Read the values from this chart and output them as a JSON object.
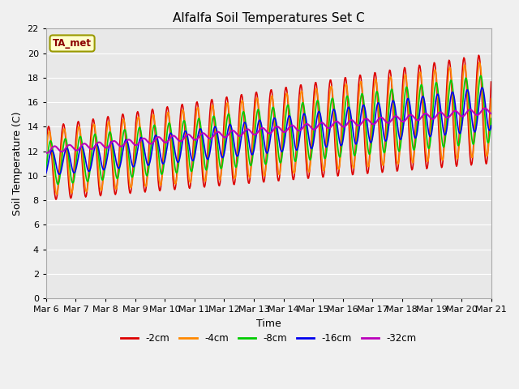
{
  "title": "Alfalfa Soil Temperatures Set C",
  "xlabel": "Time",
  "ylabel": "Soil Temperature (C)",
  "ylim": [
    0,
    22
  ],
  "yticks": [
    0,
    2,
    4,
    6,
    8,
    10,
    12,
    14,
    16,
    18,
    20,
    22
  ],
  "x_labels": [
    "Mar 6",
    "Mar 7",
    "Mar 8",
    "Mar 9",
    "Mar 10",
    "Mar 11",
    "Mar 12",
    "Mar 13",
    "Mar 14",
    "Mar 15",
    "Mar 16",
    "Mar 17",
    "Mar 18",
    "Mar 19",
    "Mar 20",
    "Mar 21"
  ],
  "colors": {
    "-2cm": "#dd0000",
    "-4cm": "#ff8800",
    "-8cm": "#00cc00",
    "-16cm": "#0000ee",
    "-32cm": "#bb00bb"
  },
  "fig_bg_color": "#f0f0f0",
  "ax_bg_color": "#e8e8e8",
  "grid_color": "#ffffff",
  "annotation_text": "TA_met",
  "annotation_bg": "#ffffcc",
  "annotation_border": "#999900"
}
